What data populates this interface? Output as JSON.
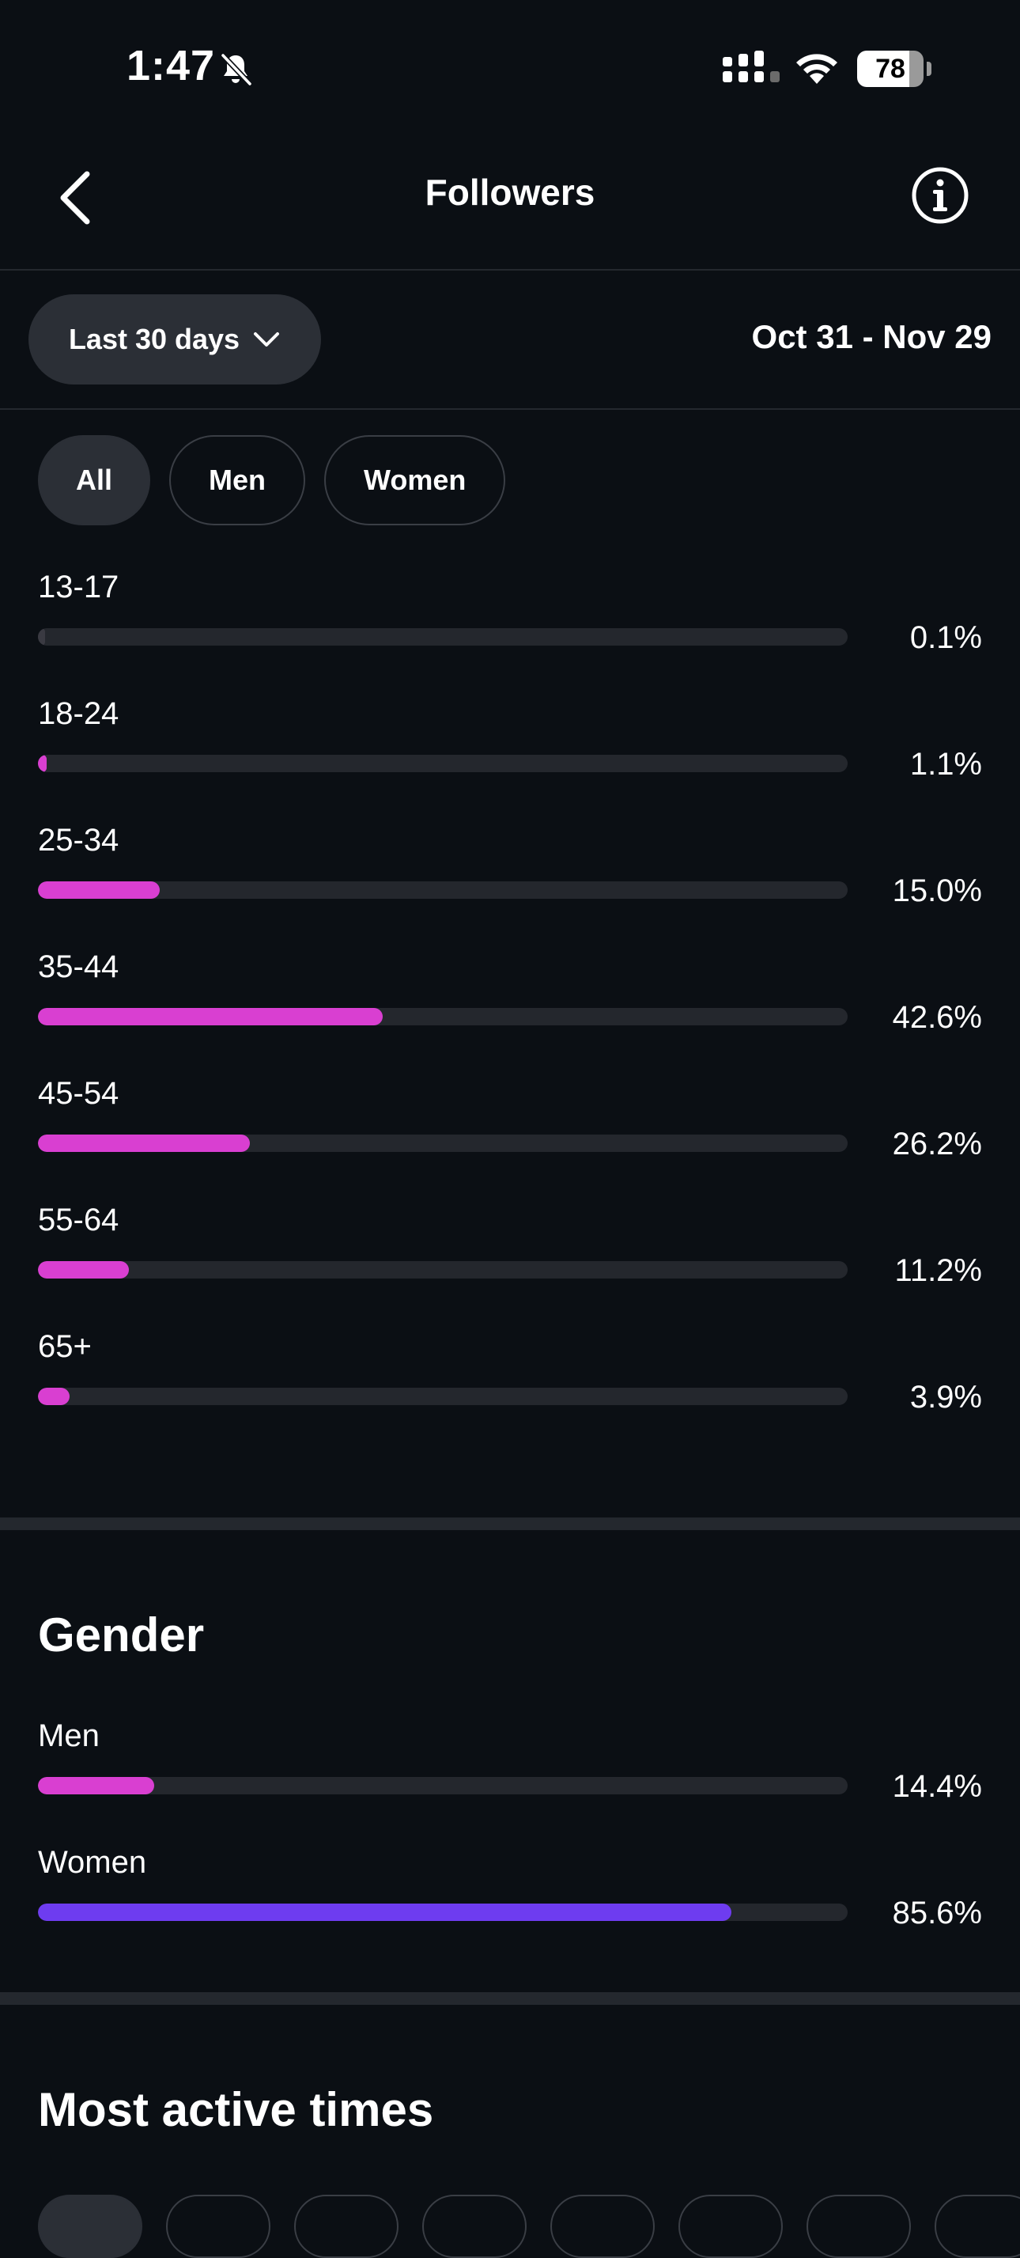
{
  "status_bar": {
    "time": "1:47",
    "battery_level": "78",
    "battery_fraction": 0.78
  },
  "header": {
    "title": "Followers"
  },
  "filters": {
    "range_label": "Last 30 days",
    "date_range": "Oct 31 - Nov 29"
  },
  "segments": [
    {
      "label": "All",
      "active": true
    },
    {
      "label": "Men",
      "active": false
    },
    {
      "label": "Women",
      "active": false
    }
  ],
  "age_range": {
    "accent": "#d93fd1",
    "rows": [
      {
        "label": "13-17",
        "value": "0.1%",
        "fraction": 0.001
      },
      {
        "label": "18-24",
        "value": "1.1%",
        "fraction": 0.011
      },
      {
        "label": "25-34",
        "value": "15.0%",
        "fraction": 0.15
      },
      {
        "label": "35-44",
        "value": "42.6%",
        "fraction": 0.426
      },
      {
        "label": "45-54",
        "value": "26.2%",
        "fraction": 0.262
      },
      {
        "label": "55-64",
        "value": "11.2%",
        "fraction": 0.112
      },
      {
        "label": "65+",
        "value": "3.9%",
        "fraction": 0.039
      }
    ]
  },
  "gender": {
    "title": "Gender",
    "rows": [
      {
        "label": "Men",
        "value": "14.4%",
        "fraction": 0.144,
        "color": "#d93fd1"
      },
      {
        "label": "Women",
        "value": "85.6%",
        "fraction": 0.856,
        "color": "#6e3cf0"
      }
    ]
  },
  "most_active": {
    "title": "Most active times",
    "day_chips": 8
  }
}
